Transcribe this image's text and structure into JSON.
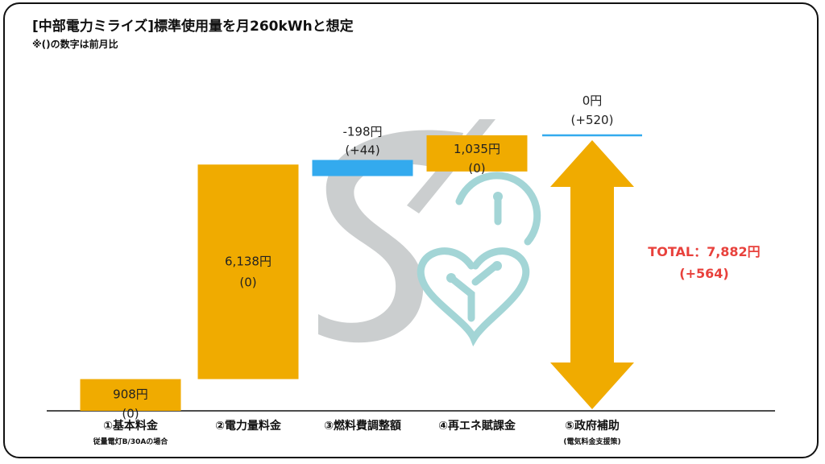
{
  "header": {
    "title": "[中部電力ミライズ]標準使用量を月260kWhと想定",
    "subtitle": "※()の数字は前月比"
  },
  "colors": {
    "bar": "#f0ab00",
    "negative": "#33aaee",
    "line": "#33aaee",
    "total": "#e8413c",
    "watermark_s": "#c9cccd",
    "watermark_heart": "#9fd3d4"
  },
  "chart_data": {
    "type": "bar",
    "subtype": "waterfall",
    "title": "[中部電力ミライズ]標準使用量を月260kWhと想定",
    "unit": "円",
    "ylim": [
      0,
      8300
    ],
    "categories": [
      "①基本料金",
      "②電力量料金",
      "③燃料費調整額",
      "④再エネ賦課金",
      "⑤政府補助"
    ],
    "category_notes": [
      "従量電灯B/30Aの場合",
      "",
      "",
      "",
      "(電気料金支援策)"
    ],
    "values": [
      908,
      6138,
      -198,
      1035,
      0
    ],
    "value_labels": [
      "908円",
      "6,138円",
      "-198円",
      "1,035円",
      "0円"
    ],
    "changes": [
      "(0)",
      "(0)",
      "(+44)",
      "(0)",
      "(+520)"
    ],
    "total": {
      "value": 7882,
      "label": "TOTAL：7,882円",
      "change": "(+564)"
    }
  }
}
